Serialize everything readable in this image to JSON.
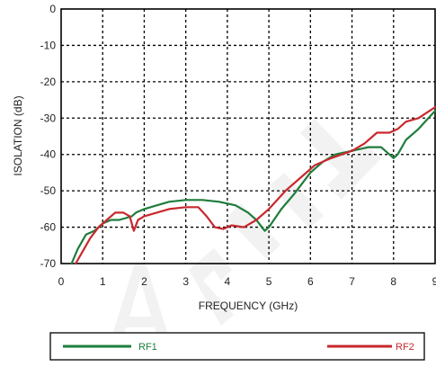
{
  "chart_data": {
    "type": "line",
    "title": "",
    "xlabel": "FREQUENCY (GHz)",
    "ylabel": "ISOLATION  (dB)",
    "xlim": [
      0,
      9
    ],
    "ylim": [
      -70,
      0
    ],
    "x_ticks": [
      "0",
      "1",
      "2",
      "3",
      "4",
      "5",
      "6",
      "7",
      "8",
      "9"
    ],
    "y_ticks": [
      "0",
      "-10",
      "-20",
      "-30",
      "-40",
      "-50",
      "-60",
      "-70"
    ],
    "grid": true,
    "legend_position": "bottom",
    "series": [
      {
        "name": "RF1",
        "color": "#1e7d3c",
        "points": [
          [
            0.25,
            -70
          ],
          [
            0.4,
            -66
          ],
          [
            0.6,
            -62
          ],
          [
            0.8,
            -61
          ],
          [
            1.0,
            -59
          ],
          [
            1.2,
            -58
          ],
          [
            1.4,
            -58
          ],
          [
            1.55,
            -57.5
          ],
          [
            1.7,
            -57
          ],
          [
            1.8,
            -56
          ],
          [
            2.0,
            -55
          ],
          [
            2.3,
            -54
          ],
          [
            2.6,
            -53
          ],
          [
            3.0,
            -52.5
          ],
          [
            3.4,
            -52.5
          ],
          [
            3.8,
            -53
          ],
          [
            4.2,
            -54
          ],
          [
            4.5,
            -56
          ],
          [
            4.7,
            -58
          ],
          [
            4.9,
            -61
          ],
          [
            5.0,
            -60
          ],
          [
            5.3,
            -55
          ],
          [
            5.6,
            -51
          ],
          [
            6.0,
            -45
          ],
          [
            6.3,
            -42
          ],
          [
            6.6,
            -40
          ],
          [
            7.0,
            -39
          ],
          [
            7.4,
            -38
          ],
          [
            7.7,
            -38
          ],
          [
            7.9,
            -40
          ],
          [
            8.0,
            -41
          ],
          [
            8.1,
            -40
          ],
          [
            8.3,
            -36
          ],
          [
            8.6,
            -33
          ],
          [
            9.0,
            -28
          ]
        ]
      },
      {
        "name": "RF2",
        "color": "#c8282e",
        "points": [
          [
            0.35,
            -70
          ],
          [
            0.5,
            -67
          ],
          [
            0.7,
            -63
          ],
          [
            0.9,
            -60
          ],
          [
            1.1,
            -58
          ],
          [
            1.3,
            -56
          ],
          [
            1.5,
            -56
          ],
          [
            1.65,
            -57
          ],
          [
            1.75,
            -61
          ],
          [
            1.85,
            -58
          ],
          [
            2.0,
            -57
          ],
          [
            2.3,
            -56
          ],
          [
            2.6,
            -55
          ],
          [
            3.0,
            -54.5
          ],
          [
            3.3,
            -54.5
          ],
          [
            3.5,
            -57
          ],
          [
            3.7,
            -60
          ],
          [
            3.9,
            -60.5
          ],
          [
            4.1,
            -59.5
          ],
          [
            4.4,
            -60
          ],
          [
            4.7,
            -58
          ],
          [
            5.0,
            -55
          ],
          [
            5.4,
            -50
          ],
          [
            5.8,
            -46
          ],
          [
            6.1,
            -43
          ],
          [
            6.5,
            -41
          ],
          [
            7.0,
            -39
          ],
          [
            7.3,
            -37
          ],
          [
            7.6,
            -34
          ],
          [
            7.9,
            -34
          ],
          [
            8.1,
            -33
          ],
          [
            8.3,
            -31
          ],
          [
            8.6,
            -30
          ],
          [
            9.0,
            -27
          ]
        ]
      }
    ]
  }
}
